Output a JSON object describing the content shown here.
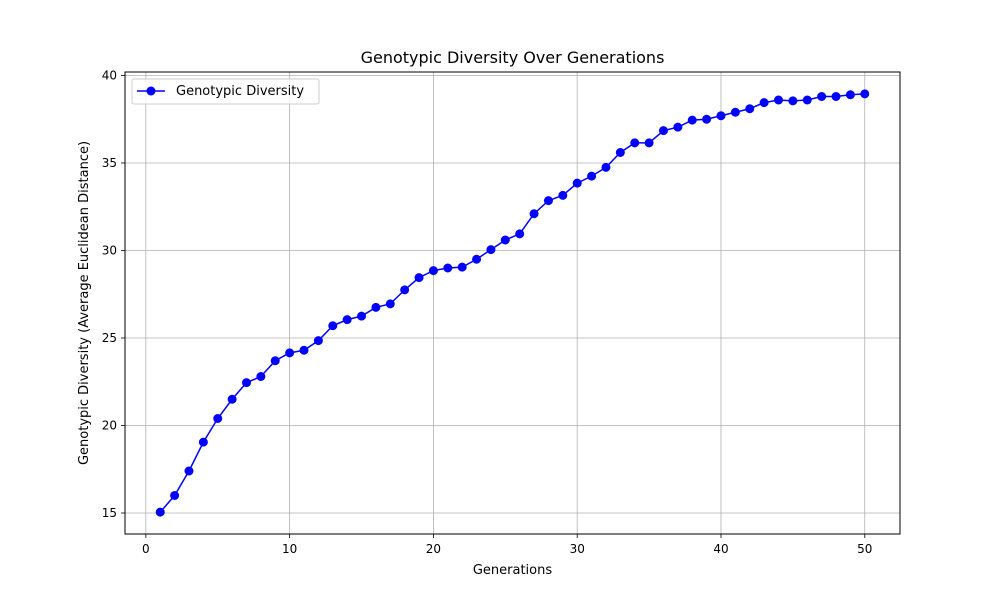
{
  "chart_data": {
    "type": "line",
    "title": "Genotypic Diversity Over Generations",
    "xlabel": "Generations",
    "ylabel": "Genotypic Diversity (Average Euclidean Distance)",
    "xlim": [
      -1.45,
      52.45
    ],
    "ylim": [
      13.8,
      40.2
    ],
    "xticks": [
      0,
      10,
      20,
      30,
      40,
      50
    ],
    "yticks": [
      15,
      20,
      25,
      30,
      35,
      40
    ],
    "grid": true,
    "legend_position": "top-left",
    "series": [
      {
        "name": "Genotypic Diversity",
        "color": "#0000ff",
        "marker": "circle",
        "x": [
          1,
          2,
          3,
          4,
          5,
          6,
          7,
          8,
          9,
          10,
          11,
          12,
          13,
          14,
          15,
          16,
          17,
          18,
          19,
          20,
          21,
          22,
          23,
          24,
          25,
          26,
          27,
          28,
          29,
          30,
          31,
          32,
          33,
          34,
          35,
          36,
          37,
          38,
          39,
          40,
          41,
          42,
          43,
          44,
          45,
          46,
          47,
          48,
          49,
          50
        ],
        "y": [
          15.05,
          16.0,
          17.4,
          19.05,
          20.4,
          21.5,
          22.45,
          22.8,
          23.7,
          24.15,
          24.3,
          24.85,
          25.7,
          26.05,
          26.25,
          26.75,
          26.95,
          27.75,
          28.45,
          28.85,
          29.0,
          29.05,
          29.5,
          30.05,
          30.6,
          30.95,
          32.1,
          32.85,
          33.15,
          33.85,
          34.25,
          34.75,
          35.6,
          36.15,
          36.15,
          36.85,
          37.05,
          37.45,
          37.5,
          37.7,
          37.9,
          38.1,
          38.45,
          38.6,
          38.55,
          38.6,
          38.8,
          38.8,
          38.9,
          38.95
        ]
      }
    ]
  }
}
